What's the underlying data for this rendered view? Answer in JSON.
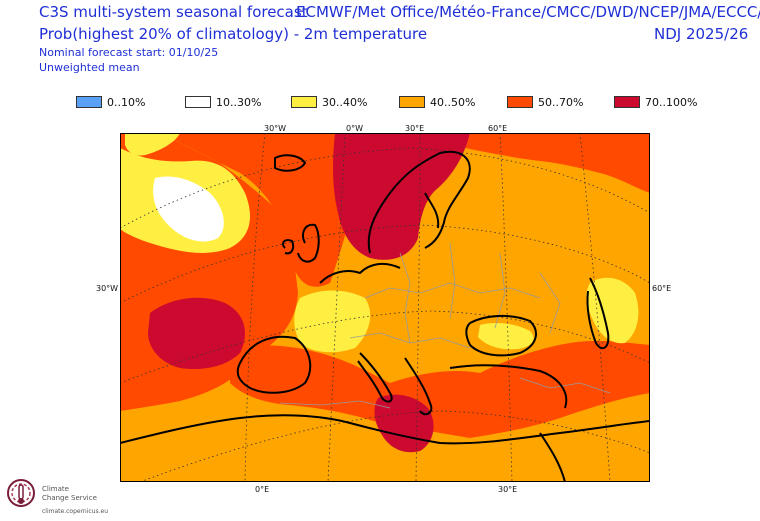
{
  "header": {
    "title_left": "C3S multi-system seasonal forecast",
    "title_right": "ECMWF/Met Office/Météo-France/CMCC/DWD/NCEP/JMA/ECCC/BOM",
    "subtitle_left": "Prob(highest 20% of climatology) - 2m temperature",
    "subtitle_right": "NDJ 2025/26",
    "info1": "Nominal forecast start: 01/10/25",
    "info2": "Unweighted mean"
  },
  "legend": [
    {
      "label": "0..10%",
      "color": "#5aa0f5"
    },
    {
      "label": "10..30%",
      "color": "#ffffff"
    },
    {
      "label": "30..40%",
      "color": "#ffef43"
    },
    {
      "label": "40..50%",
      "color": "#ffa500"
    },
    {
      "label": "50..70%",
      "color": "#ff4a00"
    },
    {
      "label": "70..100%",
      "color": "#cc0a30"
    }
  ],
  "axes": {
    "top": [
      "30°W",
      "0°W",
      "30°E",
      "60°E"
    ],
    "bottom": [
      "0°E",
      "30°E"
    ],
    "left": "30°W",
    "right": "60°E"
  },
  "logo": {
    "line1": "Climate",
    "line2": "Change Service",
    "url": "climate.copernicus.eu"
  }
}
